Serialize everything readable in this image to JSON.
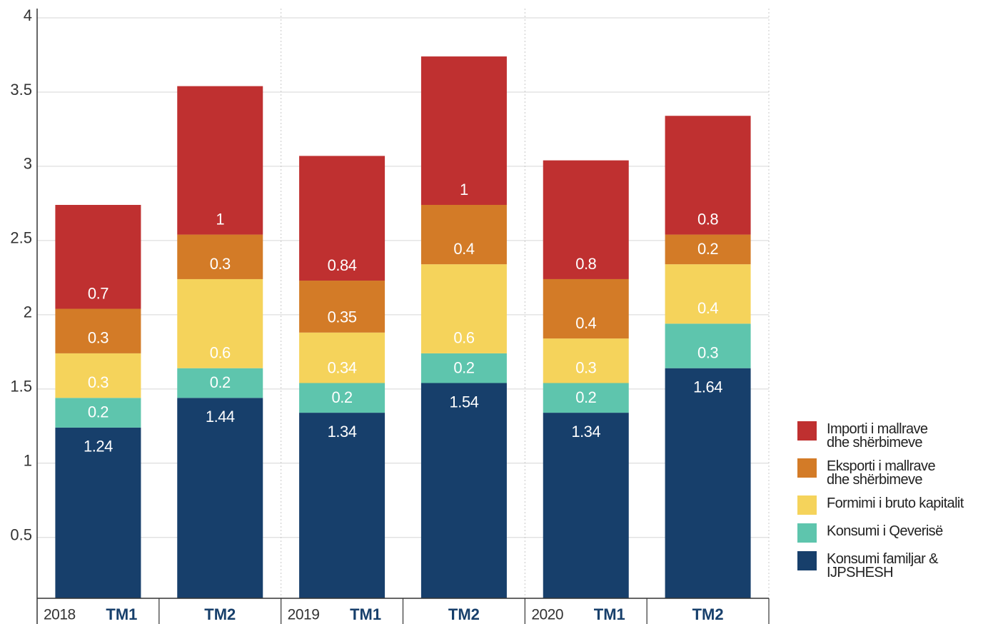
{
  "chart_data": {
    "type": "stacked_bar",
    "groups": [
      "2018",
      "2019",
      "2020"
    ],
    "categories": [
      "TM1",
      "TM2",
      "TM1",
      "TM2",
      "TM1",
      "TM2"
    ],
    "series": [
      {
        "name": "Konsumi familjar &\nIJPSHESH",
        "color": "#173f6b",
        "values": [
          1.24,
          1.44,
          1.34,
          1.54,
          1.34,
          1.64
        ]
      },
      {
        "name": "Konsumi i Qeverisë",
        "color": "#5ec5ad",
        "values": [
          0.2,
          0.2,
          0.2,
          0.2,
          0.2,
          0.3
        ]
      },
      {
        "name": "Formimi i bruto kapitalit",
        "color": "#f5d35b",
        "values": [
          0.3,
          0.6,
          0.34,
          0.6,
          0.3,
          0.4
        ]
      },
      {
        "name": "Eksporti i mallrave\ndhe shërbimeve",
        "color": "#d37b27",
        "values": [
          0.3,
          0.3,
          0.35,
          0.4,
          0.4,
          0.2
        ]
      },
      {
        "name": "Importi i mallrave\ndhe shërbimeve",
        "color": "#bf3030",
        "values": [
          0.7,
          1,
          0.84,
          1,
          0.8,
          0.8
        ]
      }
    ],
    "ylim": [
      0.09,
      4
    ],
    "yticks": [
      0.5,
      1,
      1.5,
      2,
      2.5,
      3,
      3.5,
      4
    ],
    "grid": true,
    "legend": "right"
  }
}
